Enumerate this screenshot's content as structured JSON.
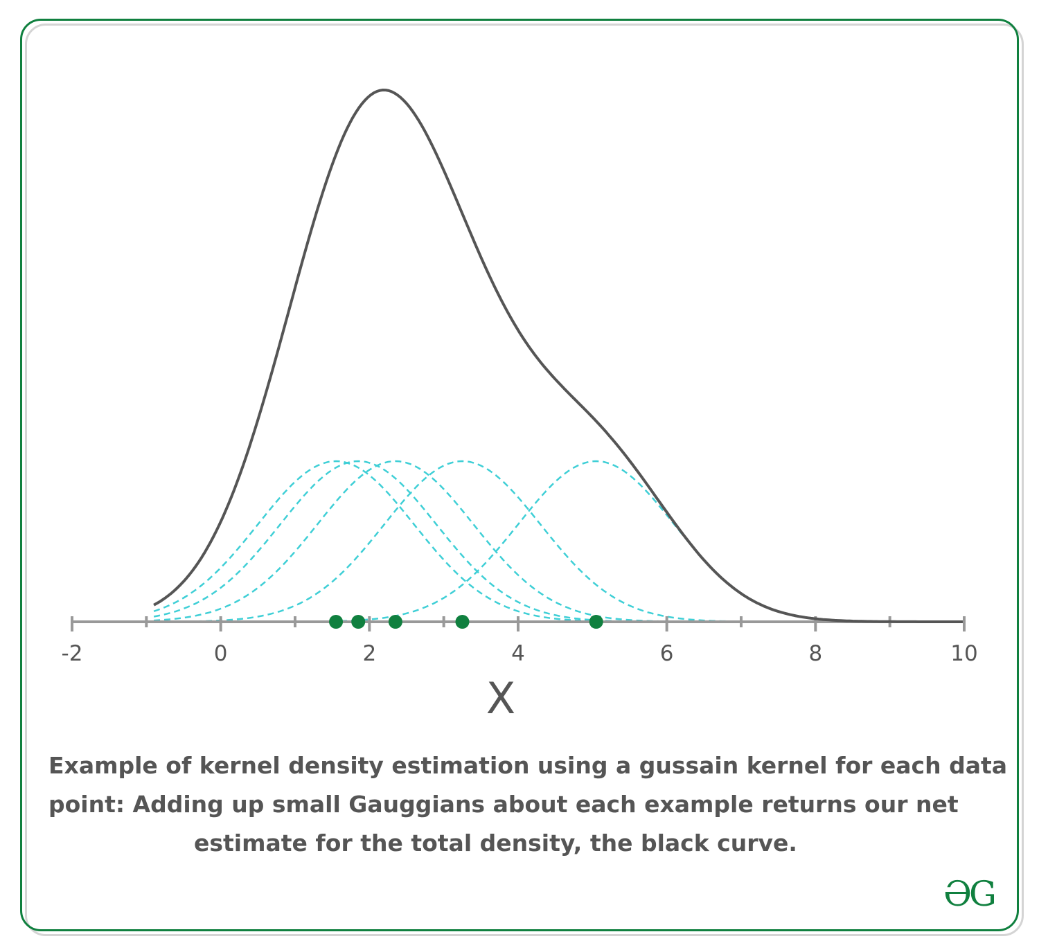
{
  "chart_data": {
    "type": "line",
    "title": "",
    "xlabel": "X",
    "ylabel": "",
    "xlim": [
      -2,
      10
    ],
    "x_ticks": [
      "-2",
      "0",
      "2",
      "4",
      "6",
      "8",
      "10"
    ],
    "data_points": [
      1.55,
      1.85,
      2.35,
      3.25,
      5.05
    ],
    "kernel_bandwidth": 1.05,
    "series": [
      {
        "name": "",
        "style": "kernel",
        "color": "#3fcfd6"
      },
      {
        "name": "",
        "style": "total density",
        "color": "#555555"
      }
    ],
    "caption": [
      "Example of kernel density estimation using a gussain kernel for each data",
      "point: Adding up small Gauggians about each example returns our net",
      "estimate for the total density, the black curve."
    ],
    "colors": {
      "frame": "#10803f",
      "points": "#10803f",
      "axis": "#999999",
      "kernel": "#3fcfd6",
      "density": "#555555"
    }
  },
  "logo": {
    "text": "ƏG",
    "icon": "gfg-logo-icon"
  }
}
